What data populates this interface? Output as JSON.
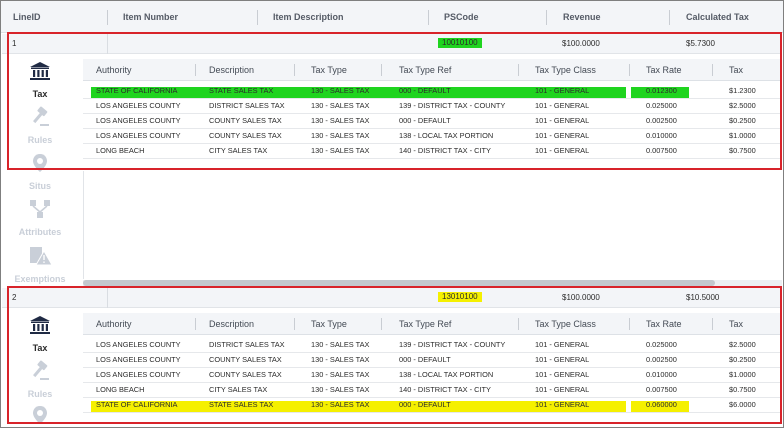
{
  "header": {
    "columns": [
      {
        "label": "LineID"
      },
      {
        "label": "Item Number"
      },
      {
        "label": "Item Description"
      },
      {
        "label": "PSCode"
      },
      {
        "label": "Revenue"
      },
      {
        "label": "Calculated Tax"
      }
    ]
  },
  "sidebar": {
    "items": [
      {
        "label": "Tax",
        "icon": "bank-icon"
      },
      {
        "label": "Rules",
        "icon": "gavel-icon"
      },
      {
        "label": "Situs",
        "icon": "location-pin-icon"
      },
      {
        "label": "Attributes",
        "icon": "hierarchy-icon"
      },
      {
        "label": "Exemptions",
        "icon": "warning-document-icon"
      }
    ]
  },
  "tax_columns": [
    "Authority",
    "Description",
    "Tax Type",
    "Tax Type Ref",
    "Tax Type Class",
    "Tax Rate",
    "Tax"
  ],
  "lines": [
    {
      "line_id": "1",
      "pscode": "10010100",
      "revenue": "$100.0000",
      "calculated_tax": "$5.7300",
      "rows": [
        [
          "STATE OF CALIFORNIA",
          "STATE SALES TAX",
          "130 - SALES TAX",
          "000 - DEFAULT",
          "101 - GENERAL",
          "0.012300",
          "$1.2300"
        ],
        [
          "LOS ANGELES COUNTY",
          "DISTRICT SALES TAX",
          "130 - SALES TAX",
          "139 - DISTRICT TAX - COUNTY",
          "101 - GENERAL",
          "0.025000",
          "$2.5000"
        ],
        [
          "LOS ANGELES COUNTY",
          "COUNTY SALES TAX",
          "130 - SALES TAX",
          "000 - DEFAULT",
          "101 - GENERAL",
          "0.002500",
          "$0.2500"
        ],
        [
          "LOS ANGELES COUNTY",
          "COUNTY SALES TAX",
          "130 - SALES TAX",
          "138 - LOCAL TAX PORTION",
          "101 - GENERAL",
          "0.010000",
          "$1.0000"
        ],
        [
          "LONG BEACH",
          "CITY SALES TAX",
          "130 - SALES TAX",
          "140 - DISTRICT TAX - CITY",
          "101 - GENERAL",
          "0.007500",
          "$0.7500"
        ]
      ]
    },
    {
      "line_id": "2",
      "pscode": "13010100",
      "revenue": "$100.0000",
      "calculated_tax": "$10.5000",
      "rows": [
        [
          "LOS ANGELES COUNTY",
          "DISTRICT SALES TAX",
          "130 - SALES TAX",
          "139 - DISTRICT TAX - COUNTY",
          "101 - GENERAL",
          "0.025000",
          "$2.5000"
        ],
        [
          "LOS ANGELES COUNTY",
          "COUNTY SALES TAX",
          "130 - SALES TAX",
          "000 - DEFAULT",
          "101 - GENERAL",
          "0.002500",
          "$0.2500"
        ],
        [
          "LOS ANGELES COUNTY",
          "COUNTY SALES TAX",
          "130 - SALES TAX",
          "138 - LOCAL TAX PORTION",
          "101 - GENERAL",
          "0.010000",
          "$1.0000"
        ],
        [
          "LONG BEACH",
          "CITY SALES TAX",
          "130 - SALES TAX",
          "140 - DISTRICT TAX - CITY",
          "101 - GENERAL",
          "0.007500",
          "$0.7500"
        ],
        [
          "STATE OF CALIFORNIA",
          "STATE SALES TAX",
          "130 - SALES TAX",
          "000 - DEFAULT",
          "101 - GENERAL",
          "0.060000",
          "$6.0000"
        ]
      ]
    }
  ],
  "colors": {
    "highlight_green": "#1fd41f",
    "highlight_yellow": "#f5f000",
    "annotation_red": "#d8232a"
  }
}
